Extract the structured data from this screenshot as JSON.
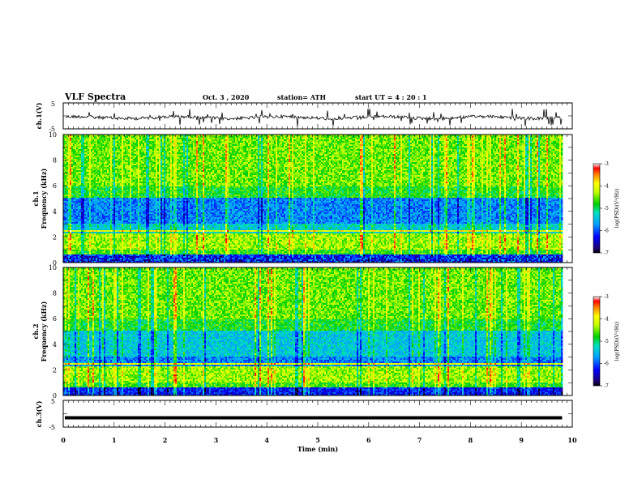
{
  "header": {
    "title": "VLF Spectra",
    "date": "Oct. 3  , 2020",
    "station": "station= ATH",
    "start_ut": "start  UT =   4 : 20 : 1"
  },
  "chart_data": [
    {
      "type": "line",
      "name": "ch1_waveform",
      "ylabel": "ch.1(V)",
      "yticks": [
        "5",
        "-5"
      ],
      "ylim": [
        -5,
        5
      ],
      "xlim": [
        0,
        10
      ],
      "samples_end_min": 9.8
    },
    {
      "type": "heatmap",
      "name": "ch1_spectrogram",
      "ylabel_line1": "ch.1",
      "ylabel_line2": "Frequency  (kHz)",
      "yticks": [
        "0",
        "2",
        "4",
        "6",
        "8",
        "10"
      ],
      "ylim": [
        0,
        10
      ],
      "xlim": [
        0,
        10
      ],
      "data_end_min": 9.8,
      "colorbar": {
        "label": "log(PSD)(V²/Hz)",
        "ticks": [
          "-3",
          "-4",
          "-5",
          "-6",
          "-7"
        ],
        "range": [
          -7,
          -3
        ]
      }
    },
    {
      "type": "heatmap",
      "name": "ch2_spectrogram",
      "ylabel_line1": "ch.2",
      "ylabel_line2": "Frequency  (kHz)",
      "yticks": [
        "0",
        "2",
        "4",
        "6",
        "8",
        "10"
      ],
      "ylim": [
        0,
        10
      ],
      "xlim": [
        0,
        10
      ],
      "data_end_min": 9.8,
      "colorbar": {
        "label": "log(PSD)(V²/Hz)",
        "ticks": [
          "-3",
          "-4",
          "-5",
          "-6",
          "-7"
        ],
        "range": [
          -7,
          -3
        ]
      }
    },
    {
      "type": "line",
      "name": "ch3_waveform",
      "ylabel": "ch.3(V)",
      "yticks": [
        "5",
        "-5"
      ],
      "ylim": [
        -5,
        5
      ],
      "xlim": [
        0,
        10
      ],
      "level": -1.5,
      "samples_end_min": 9.8
    }
  ],
  "xaxis": {
    "label": "Time  (min)",
    "ticks": [
      "0",
      "1",
      "2",
      "3",
      "4",
      "5",
      "6",
      "7",
      "8",
      "9",
      "10"
    ],
    "range": [
      0,
      10
    ]
  }
}
